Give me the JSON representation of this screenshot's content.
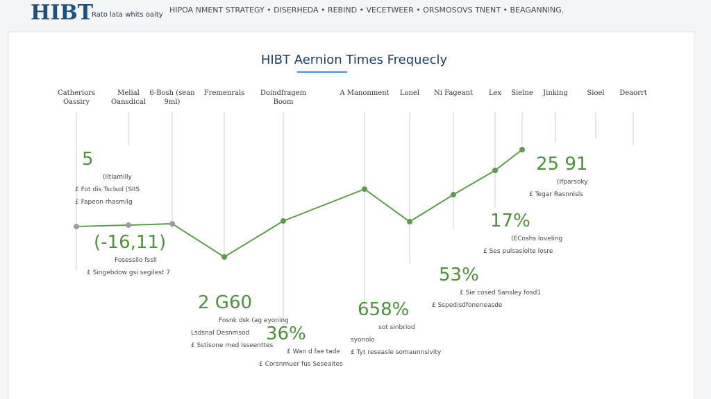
{
  "header": {
    "logo": "HIBT",
    "tagline": "Rato lata whits oaity",
    "nav": "HIPOA NMENT STRATEGY • DISERHEDA • REBIND • VECETWEER • ORSMOSOVS TNENT • BEAGANNING."
  },
  "chart_data": {
    "type": "line",
    "title": "HIBT Aernion Times Frequecly",
    "categories": [
      "Catheriors Oassiry",
      "Melial Oansdical",
      "6-Bosh (sean 9ml)",
      "Fremenrals",
      "Doindfragem Boom",
      "A Manonment",
      "Lonel",
      "Ni Fageant",
      "Lex",
      "Sielne",
      "Jinking",
      "Sioel",
      "Deaorrt"
    ],
    "series": [
      {
        "name": "Frequecly",
        "color": "#5e9b4c",
        "values": [
          36.5,
          37.5,
          38.5,
          14.5,
          40.5,
          63.5,
          40,
          59.5,
          77,
          92,
          null,
          null,
          null
        ]
      }
    ],
    "ylim": [
      0,
      100
    ],
    "annotations": [
      {
        "label": "5",
        "notes": [
          "(Iltlamilly",
          "£ Fot dis Tsclsol (SIIS",
          "£ Fapeon rhasmilg"
        ]
      },
      {
        "label": "(-16,11)",
        "notes": [
          "Fosessilo fssll",
          "£ Singebdow gsi segilest 7"
        ]
      },
      {
        "label": "2 G60",
        "notes": [
          "Fosnk dsk (ag eyoning",
          "Lsdsnal Desnmsod",
          "£ Sstisone med Isseenttes"
        ]
      },
      {
        "label": "36%",
        "notes": [
          "£ Wan d fae tade",
          "£ Corsnmuer fus Seseaites"
        ]
      },
      {
        "label": "658%",
        "notes": [
          "sot sinbriod",
          "syonolo",
          "£ Tyt reseasle somaunnsivity"
        ]
      },
      {
        "label": "53%",
        "notes": [
          "£ Sie cosed Sansley fosd1",
          "£ Sspedisdfoneneasde"
        ]
      },
      {
        "label": "17%",
        "notes": [
          "(ECoshs loveling",
          "£ Ses pulsasiolte losre"
        ]
      },
      {
        "label": "25 91",
        "notes": [
          "(Ifparsoky",
          "£ Tegar Rasnnlsls"
        ]
      }
    ]
  }
}
